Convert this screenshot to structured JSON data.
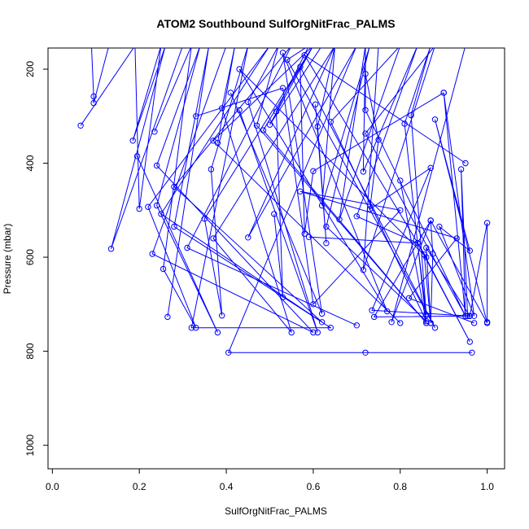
{
  "chart_data": {
    "type": "line",
    "title": "ATOM2 Southbound SulfOrgNitFrac_PALMS",
    "xlabel": "SulfOrgNitFrac_PALMS",
    "ylabel": "Pressure (mbar)",
    "xlim": [
      -0.01,
      1.04
    ],
    "ylim": [
      1050,
      155
    ],
    "y_inverted": true,
    "x_ticks": [
      0.0,
      0.2,
      0.4,
      0.6,
      0.8,
      1.0
    ],
    "x_tick_labels": [
      "0.0",
      "0.2",
      "0.4",
      "0.6",
      "0.8",
      "1.0"
    ],
    "y_ticks": [
      200,
      400,
      600,
      800,
      1000
    ],
    "y_tick_labels": [
      "200",
      "400",
      "600",
      "800",
      "1000"
    ],
    "grid": false,
    "color": "#0000ff",
    "series": [
      {
        "points": [
          [
            0.09,
            150
          ],
          [
            0.095,
            258
          ],
          [
            0.095,
            272
          ],
          [
            0.13,
            150
          ]
        ]
      },
      {
        "points": [
          [
            0.065,
            320
          ],
          [
            0.19,
            150
          ],
          [
            0.2,
            497
          ],
          [
            0.25,
            150
          ],
          [
            0.185,
            352
          ],
          [
            0.26,
            150
          ],
          [
            0.135,
            582
          ],
          [
            0.3,
            150
          ]
        ]
      },
      {
        "points": [
          [
            0.195,
            385
          ],
          [
            0.38,
            760
          ],
          [
            0.24,
            490
          ],
          [
            0.34,
            150
          ],
          [
            0.24,
            405
          ],
          [
            0.6,
            760
          ],
          [
            0.23,
            593
          ],
          [
            0.4,
            150
          ]
        ]
      },
      {
        "points": [
          [
            0.235,
            333
          ],
          [
            0.32,
            150
          ],
          [
            0.255,
            625
          ],
          [
            0.33,
            750
          ],
          [
            0.22,
            493
          ],
          [
            0.5,
            150
          ],
          [
            0.25,
            508
          ],
          [
            0.62,
            738
          ],
          [
            0.28,
            450
          ],
          [
            0.55,
            150
          ],
          [
            0.31,
            580
          ],
          [
            0.7,
            745
          ]
        ]
      },
      {
        "points": [
          [
            0.265,
            727
          ],
          [
            0.36,
            150
          ],
          [
            0.28,
            535
          ],
          [
            0.64,
            750
          ],
          [
            0.32,
            750
          ],
          [
            0.45,
            150
          ],
          [
            0.365,
            413
          ],
          [
            0.39,
            724
          ],
          [
            0.35,
            518
          ],
          [
            0.6,
            150
          ],
          [
            0.37,
            352
          ],
          [
            0.8,
            740
          ]
        ]
      },
      {
        "points": [
          [
            0.38,
            357
          ],
          [
            0.42,
            150
          ],
          [
            0.39,
            283
          ],
          [
            0.55,
            760
          ],
          [
            0.37,
            560
          ],
          [
            0.65,
            150
          ],
          [
            0.45,
            558
          ],
          [
            0.7,
            150
          ],
          [
            0.405,
            803
          ],
          [
            0.72,
            803
          ],
          [
            0.965,
            803
          ]
        ]
      },
      {
        "points": [
          [
            0.43,
            287
          ],
          [
            0.61,
            760
          ],
          [
            0.45,
            270
          ],
          [
            0.52,
            150
          ],
          [
            0.47,
            320
          ],
          [
            0.86,
            740
          ],
          [
            0.485,
            330
          ],
          [
            0.6,
            150
          ],
          [
            0.5,
            318
          ],
          [
            0.62,
            150
          ]
        ]
      },
      {
        "points": [
          [
            0.51,
            508
          ],
          [
            0.53,
            685
          ],
          [
            0.515,
            290
          ],
          [
            0.59,
            150
          ],
          [
            0.54,
            180
          ],
          [
            0.88,
            750
          ],
          [
            0.57,
            195
          ],
          [
            0.58,
            550
          ],
          [
            0.6,
            417
          ],
          [
            0.9,
            250
          ]
        ]
      },
      {
        "points": [
          [
            0.605,
            275
          ],
          [
            0.63,
            570
          ],
          [
            0.61,
            322
          ],
          [
            0.65,
            150
          ],
          [
            0.62,
            490
          ],
          [
            0.73,
            150
          ],
          [
            0.63,
            535
          ],
          [
            0.86,
            736
          ],
          [
            0.64,
            312
          ],
          [
            0.8,
            150
          ],
          [
            0.66,
            520
          ],
          [
            0.72,
            150
          ]
        ]
      },
      {
        "points": [
          [
            0.59,
            557
          ],
          [
            0.84,
            570
          ],
          [
            0.7,
            513
          ],
          [
            0.84,
            150
          ],
          [
            0.715,
            418
          ],
          [
            0.72,
            150
          ],
          [
            0.72,
            287
          ],
          [
            0.95,
            725
          ],
          [
            0.72,
            337
          ],
          [
            0.88,
            150
          ],
          [
            0.715,
            627
          ],
          [
            0.75,
            150
          ]
        ]
      },
      {
        "points": [
          [
            0.72,
            210
          ],
          [
            0.75,
            350
          ],
          [
            0.73,
            498
          ],
          [
            0.87,
            410
          ],
          [
            0.735,
            713
          ],
          [
            0.96,
            725
          ],
          [
            0.74,
            727
          ],
          [
            0.87,
            522
          ],
          [
            0.78,
            738
          ],
          [
            0.95,
            150
          ]
        ]
      },
      {
        "points": [
          [
            0.8,
            437
          ],
          [
            0.86,
            740
          ],
          [
            0.81,
            316
          ],
          [
            0.87,
            150
          ],
          [
            0.825,
            298
          ],
          [
            0.86,
            723
          ],
          [
            0.84,
            570
          ],
          [
            0.96,
            780
          ],
          [
            0.855,
            594
          ],
          [
            0.87,
            740
          ],
          [
            0.86,
            580
          ],
          [
            0.96,
            725
          ]
        ]
      },
      {
        "points": [
          [
            0.87,
            740
          ],
          [
            0.875,
            593
          ],
          [
            0.87,
            522
          ],
          [
            1.0,
            740
          ],
          [
            0.88,
            307
          ],
          [
            0.96,
            586
          ],
          [
            0.89,
            535
          ],
          [
            0.97,
            725
          ],
          [
            0.9,
            250
          ],
          [
            0.95,
            725
          ],
          [
            0.94,
            413
          ],
          [
            0.955,
            725
          ]
        ]
      },
      {
        "points": [
          [
            0.955,
            725
          ],
          [
            0.96,
            725
          ],
          [
            1.0,
            527
          ],
          [
            1.0,
            738
          ]
        ]
      },
      {
        "points": [
          [
            0.41,
            250
          ],
          [
            0.62,
            720
          ],
          [
            0.53,
            165
          ],
          [
            0.77,
            715
          ],
          [
            0.43,
            200
          ],
          [
            0.86,
            600
          ],
          [
            0.58,
            170
          ],
          [
            0.95,
            400
          ]
        ]
      },
      {
        "points": [
          [
            0.33,
            300
          ],
          [
            0.53,
            240
          ],
          [
            0.6,
            700
          ],
          [
            0.8,
            500
          ],
          [
            0.57,
            460
          ],
          [
            0.93,
            560
          ],
          [
            0.82,
            687
          ],
          [
            0.97,
            740
          ]
        ]
      }
    ]
  }
}
